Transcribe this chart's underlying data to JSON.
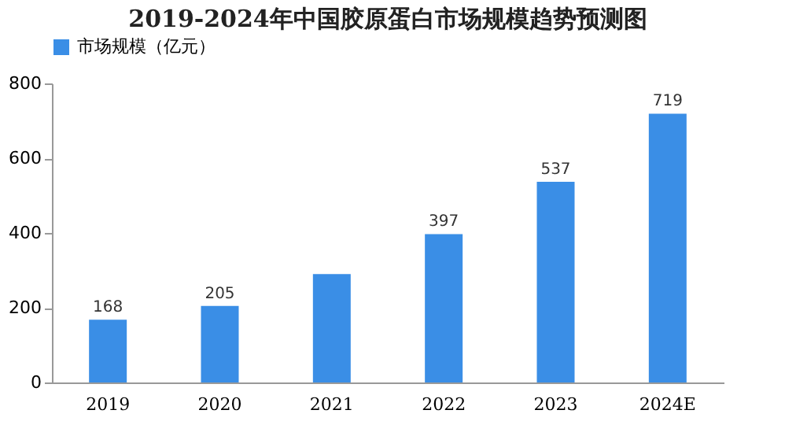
{
  "chart_data": {
    "type": "bar",
    "title": "2019-2024年中国胶原蛋白市场规模趋势预测图",
    "categories": [
      "2019",
      "2020",
      "2021",
      "2022",
      "2023",
      "2024E"
    ],
    "series": [
      {
        "name": "市场规模（亿元）",
        "color": "#3a8ee6",
        "values": [
          168,
          205,
          290,
          397,
          537,
          719
        ]
      }
    ],
    "value_labels": [
      "168",
      "205",
      null,
      "397",
      "537",
      "719"
    ],
    "ylim": [
      0,
      800
    ],
    "yticks": [
      0,
      200,
      400,
      600,
      800
    ],
    "grid": false,
    "legend": "top"
  }
}
